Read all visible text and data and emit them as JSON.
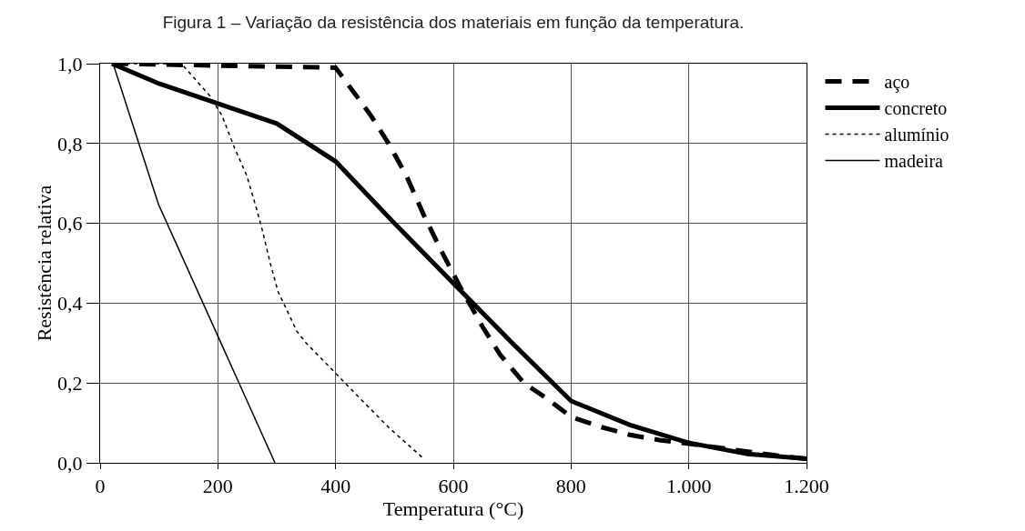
{
  "chart_data": {
    "type": "line",
    "title": "Figura 1 – Variação da resistência dos materiais em função da temperatura.",
    "xlabel": "Temperatura (°C)",
    "ylabel": "Resistência relativa",
    "xlim": [
      0,
      1200
    ],
    "xticks": [
      0,
      200,
      400,
      600,
      800,
      {
        "value": 1000,
        "label": "1.000"
      },
      {
        "value": 1200,
        "label": "1.200"
      }
    ],
    "ylim": [
      0,
      1
    ],
    "yticks": [
      {
        "value": 0,
        "label": "0,0"
      },
      {
        "value": 0.2,
        "label": "0,2"
      },
      {
        "value": 0.4,
        "label": "0,4"
      },
      {
        "value": 0.6,
        "label": "0,6"
      },
      {
        "value": 0.8,
        "label": "0,8"
      },
      {
        "value": 1,
        "label": "1,0"
      }
    ],
    "grid": true,
    "legend": "top right",
    "marker": "none",
    "series": [
      {
        "name": "aço",
        "color": "#000000",
        "line_style": "dashed",
        "x": [
          20,
          400,
          430,
          460,
          490,
          520,
          550,
          580,
          610,
          650,
          680,
          720,
          760,
          800,
          850,
          900,
          950,
          1000,
          1050,
          1100,
          1150,
          1200
        ],
        "values": [
          1,
          0.99,
          0.93,
          0.87,
          0.8,
          0.72,
          0.62,
          0.53,
          0.445,
          0.34,
          0.27,
          0.2,
          0.16,
          0.115,
          0.09,
          0.07,
          0.057,
          0.048,
          0.038,
          0.028,
          0.018,
          0.01
        ]
      },
      {
        "name": "concreto",
        "color": "#000000",
        "line_style": "solid",
        "x": [
          20,
          100,
          200,
          300,
          400,
          500,
          600,
          700,
          800,
          900,
          1000,
          1100,
          1200
        ],
        "values": [
          1,
          0.95,
          0.9,
          0.85,
          0.755,
          0.6,
          0.45,
          0.3,
          0.155,
          0.095,
          0.05,
          0.022,
          0.01
        ]
      },
      {
        "name": "alumínio",
        "color": "#000000",
        "line_style": "dotted",
        "x": [
          20,
          138,
          186,
          207,
          228,
          249,
          265,
          276,
          289,
          302,
          318,
          334,
          350,
          403,
          439,
          492,
          550
        ],
        "values": [
          1,
          1,
          0.92,
          0.87,
          0.79,
          0.72,
          0.64,
          0.58,
          0.5,
          0.43,
          0.38,
          0.33,
          0.3,
          0.22,
          0.165,
          0.086,
          0.01
        ]
      },
      {
        "name": "madeira",
        "color": "#000000",
        "line_style": "solid",
        "x": [
          22,
          99,
          297
        ],
        "values": [
          1,
          0.648,
          0
        ]
      }
    ]
  }
}
